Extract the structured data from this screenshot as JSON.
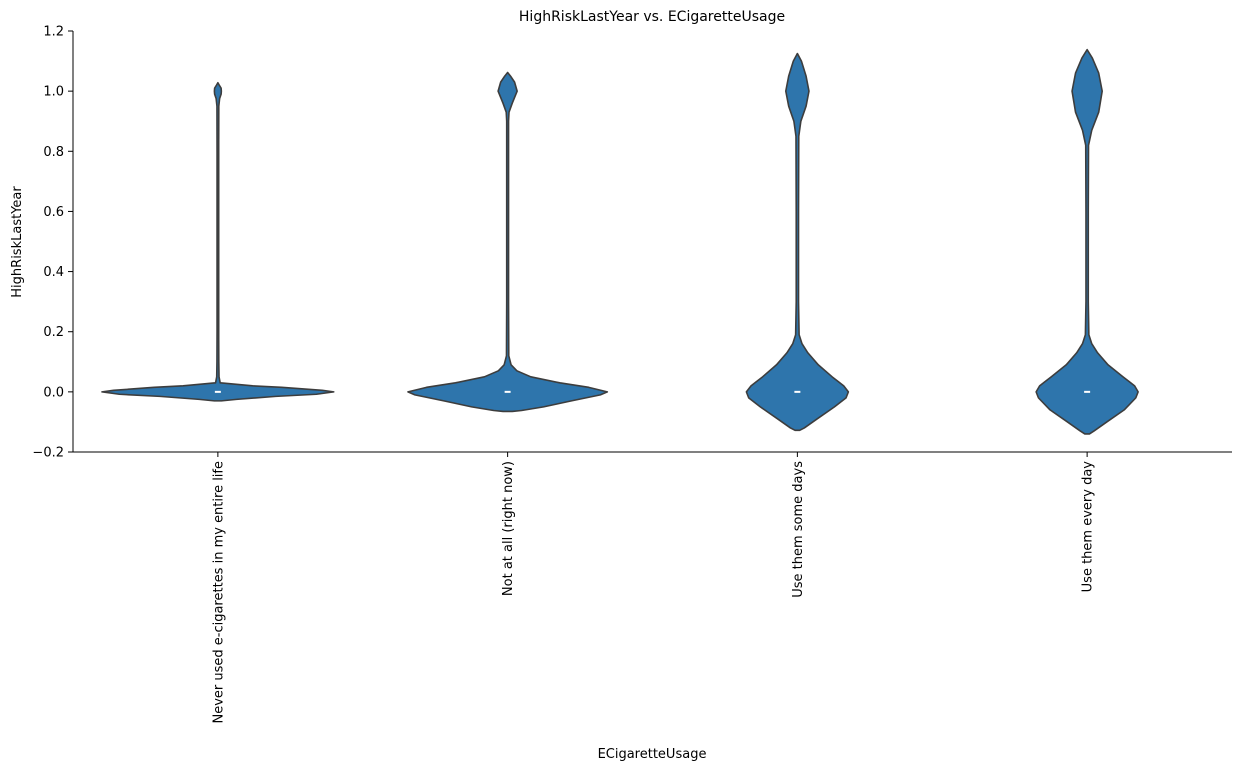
{
  "chart_data": {
    "type": "violin",
    "title": "HighRiskLastYear vs. ECigaretteUsage",
    "xlabel": "ECigaretteUsage",
    "ylabel": "HighRiskLastYear",
    "ylim": [
      -0.2,
      1.2
    ],
    "yticks": [
      "−0.2",
      "0.0",
      "0.2",
      "0.4",
      "0.6",
      "0.8",
      "1.0",
      "1.2"
    ],
    "ytick_values": [
      -0.2,
      0.0,
      0.2,
      0.4,
      0.6,
      0.8,
      1.0,
      1.2
    ],
    "grid": false,
    "color": "#2e75ac",
    "categories": [
      "Never used e-cigarettes in my entire life",
      "Not at all (right now)",
      "Use them some days",
      "Use them every day"
    ],
    "medians": [
      0,
      0,
      0,
      0
    ],
    "violins": [
      {
        "category": "Never used e-cigarettes in my entire life",
        "profile": [
          [
            -0.03,
            0.03
          ],
          [
            -0.025,
            0.16
          ],
          [
            -0.015,
            0.5
          ],
          [
            -0.008,
            0.85
          ],
          [
            0,
            1.0
          ],
          [
            0.005,
            0.9
          ],
          [
            0.015,
            0.55
          ],
          [
            0.02,
            0.3
          ],
          [
            0.03,
            0.02
          ],
          [
            0.05,
            0.01
          ],
          [
            0.1,
            0.008
          ],
          [
            0.2,
            0.007
          ],
          [
            0.4,
            0.007
          ],
          [
            0.6,
            0.007
          ],
          [
            0.8,
            0.007
          ],
          [
            0.95,
            0.008
          ],
          [
            0.975,
            0.015
          ],
          [
            0.99,
            0.028
          ],
          [
            1.0,
            0.03
          ],
          [
            1.01,
            0.028
          ],
          [
            1.02,
            0.012
          ],
          [
            1.028,
            0
          ]
        ]
      },
      {
        "category": "Not at all (right now)",
        "profile": [
          [
            -0.065,
            0.04
          ],
          [
            -0.062,
            0.12
          ],
          [
            -0.05,
            0.31
          ],
          [
            -0.03,
            0.55
          ],
          [
            -0.01,
            0.8
          ],
          [
            0,
            0.86
          ],
          [
            0.015,
            0.7
          ],
          [
            0.03,
            0.45
          ],
          [
            0.05,
            0.2
          ],
          [
            0.07,
            0.08
          ],
          [
            0.09,
            0.03
          ],
          [
            0.12,
            0.01
          ],
          [
            0.3,
            0.008
          ],
          [
            0.6,
            0.008
          ],
          [
            0.9,
            0.008
          ],
          [
            0.93,
            0.012
          ],
          [
            0.96,
            0.04
          ],
          [
            1.0,
            0.082
          ],
          [
            1.03,
            0.06
          ],
          [
            1.05,
            0.025
          ],
          [
            1.062,
            0
          ]
        ]
      },
      {
        "category": "Use them some days",
        "profile": [
          [
            -0.128,
            0.02
          ],
          [
            -0.12,
            0.06
          ],
          [
            -0.09,
            0.17
          ],
          [
            -0.05,
            0.32
          ],
          [
            -0.02,
            0.42
          ],
          [
            0,
            0.44
          ],
          [
            0.02,
            0.4
          ],
          [
            0.05,
            0.3
          ],
          [
            0.09,
            0.18
          ],
          [
            0.13,
            0.09
          ],
          [
            0.16,
            0.04
          ],
          [
            0.19,
            0.015
          ],
          [
            0.3,
            0.01
          ],
          [
            0.6,
            0.01
          ],
          [
            0.85,
            0.012
          ],
          [
            0.9,
            0.03
          ],
          [
            0.95,
            0.075
          ],
          [
            1.0,
            0.1
          ],
          [
            1.05,
            0.075
          ],
          [
            1.1,
            0.035
          ],
          [
            1.125,
            0
          ]
        ]
      },
      {
        "category": "Use them every day",
        "profile": [
          [
            -0.14,
            0.02
          ],
          [
            -0.13,
            0.06
          ],
          [
            -0.1,
            0.17
          ],
          [
            -0.06,
            0.32
          ],
          [
            -0.02,
            0.42
          ],
          [
            0,
            0.44
          ],
          [
            0.02,
            0.41
          ],
          [
            0.05,
            0.31
          ],
          [
            0.09,
            0.18
          ],
          [
            0.13,
            0.09
          ],
          [
            0.16,
            0.04
          ],
          [
            0.19,
            0.015
          ],
          [
            0.3,
            0.01
          ],
          [
            0.6,
            0.01
          ],
          [
            0.82,
            0.012
          ],
          [
            0.87,
            0.04
          ],
          [
            0.93,
            0.1
          ],
          [
            1.0,
            0.13
          ],
          [
            1.06,
            0.1
          ],
          [
            1.11,
            0.045
          ],
          [
            1.138,
            0
          ]
        ]
      }
    ]
  }
}
